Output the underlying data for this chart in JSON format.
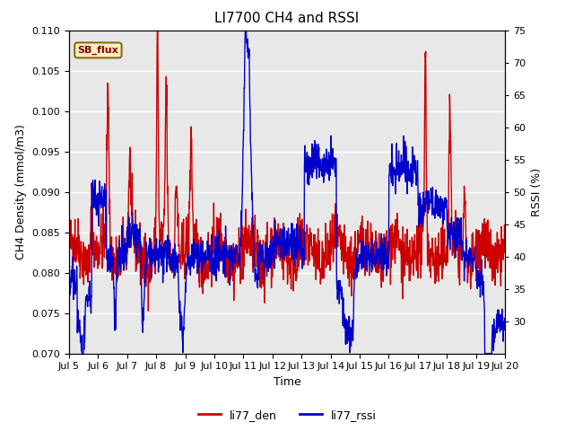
{
  "title": "LI7700 CH4 and RSSI",
  "xlabel": "Time",
  "ylabel_left": "CH4 Density (mmol/m3)",
  "ylabel_right": "RSSI (%)",
  "ylim_left": [
    0.07,
    0.11
  ],
  "ylim_right": [
    25,
    75
  ],
  "yticks_left": [
    0.07,
    0.075,
    0.08,
    0.085,
    0.09,
    0.095,
    0.1,
    0.105,
    0.11
  ],
  "yticks_right": [
    30,
    35,
    40,
    45,
    50,
    55,
    60,
    65,
    70,
    75
  ],
  "xtick_labels": [
    "Jul 5",
    "Jul 6",
    "Jul 7",
    "Jul 8",
    "Jul 9",
    "Jul 10",
    "Jul 11",
    "Jul 12",
    "Jul 13",
    "Jul 14",
    "Jul 15",
    "Jul 16",
    "Jul 17",
    "Jul 18",
    "Jul 19",
    "Jul 20"
  ],
  "legend_label_red": "li77_den",
  "legend_label_blue": "li77_rssi",
  "annotation_text": "SB_flux",
  "plot_bg_color": "#e8e8e8",
  "red_color": "#cc0000",
  "blue_color": "#0000cc",
  "line_width": 1.0,
  "title_fontsize": 11,
  "axis_fontsize": 9,
  "tick_fontsize": 8
}
